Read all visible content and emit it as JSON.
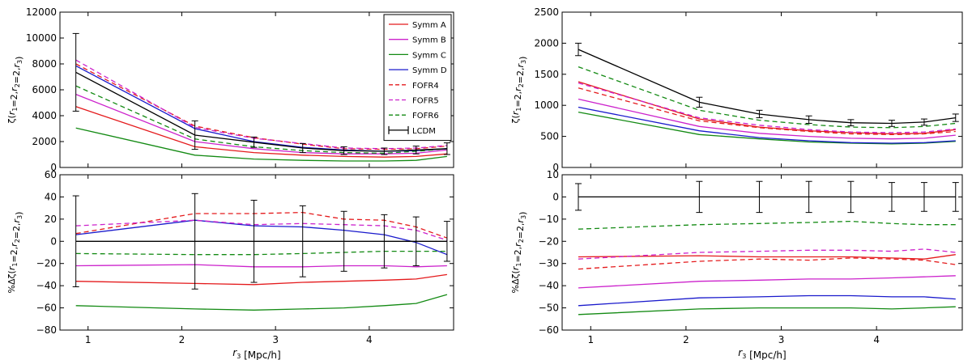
{
  "series_styles": [
    {
      "name": "Symm A",
      "color": "#e41a1c",
      "dashed": false
    },
    {
      "name": "Symm B",
      "color": "#cc22cc",
      "dashed": false
    },
    {
      "name": "Symm C",
      "color": "#138a13",
      "dashed": false
    },
    {
      "name": "Symm D",
      "color": "#1a1acc",
      "dashed": false
    },
    {
      "name": "FOFR4",
      "color": "#e41a1c",
      "dashed": true
    },
    {
      "name": "FOFR5",
      "color": "#cc22cc",
      "dashed": true
    },
    {
      "name": "FOFR6",
      "color": "#138a13",
      "dashed": true
    },
    {
      "name": "LCDM",
      "color": "#000000",
      "dashed": false
    }
  ],
  "legend": [
    "Symm A",
    "Symm B",
    "Symm C",
    "Symm D",
    "FOFR4",
    "FOFR5",
    "FOFR6",
    "LCDM"
  ],
  "chart_data": [
    {
      "type": "line",
      "panel": "left-top",
      "ylabel": "ζ(r1=2,r2=2,r3)",
      "xlabel": "",
      "xlim": [
        0.7,
        4.9
      ],
      "ylim": [
        0,
        12000
      ],
      "xticks": [
        "1",
        "2",
        "3",
        "4"
      ],
      "yticks": [
        "0",
        "2000",
        "4000",
        "6000",
        "8000",
        "10000",
        "12000"
      ],
      "legend_position": "top-right",
      "x": [
        0.87,
        2.14,
        2.77,
        3.29,
        3.73,
        4.16,
        4.5,
        4.83
      ],
      "series": [
        {
          "name": "Symm A",
          "values": [
            4700,
            1600,
            1150,
            950,
            850,
            800,
            850,
            1050
          ]
        },
        {
          "name": "Symm B",
          "values": [
            5650,
            2000,
            1450,
            1150,
            1050,
            1050,
            1100,
            1350
          ]
        },
        {
          "name": "Symm C",
          "values": [
            3050,
            950,
            650,
            550,
            500,
            500,
            550,
            850
          ]
        },
        {
          "name": "Symm D",
          "values": [
            7850,
            3000,
            2000,
            1550,
            1350,
            1250,
            1300,
            1450
          ]
        },
        {
          "name": "FOFR4",
          "values": [
            8000,
            3200,
            2300,
            1800,
            1450,
            1400,
            1450,
            1650
          ]
        },
        {
          "name": "FOFR5",
          "values": [
            8300,
            3100,
            2250,
            1850,
            1500,
            1450,
            1500,
            1700
          ]
        },
        {
          "name": "FOFR6",
          "values": [
            6300,
            2200,
            1600,
            1300,
            1150,
            1100,
            1250,
            1450
          ]
        },
        {
          "name": "LCDM",
          "values": [
            7350,
            2500,
            1950,
            1500,
            1300,
            1250,
            1350,
            1450
          ],
          "errors": [
            3000,
            1100,
            400,
            350,
            300,
            250,
            300,
            450
          ]
        }
      ]
    },
    {
      "type": "line",
      "panel": "left-bottom",
      "ylabel": "%Δζ(r1=2,r2=2,r3)",
      "xlabel": "r3 [Mpc/h]",
      "xlim": [
        0.7,
        4.9
      ],
      "ylim": [
        -80,
        60
      ],
      "xticks": [
        "1",
        "2",
        "3",
        "4"
      ],
      "yticks": [
        "−80",
        "−60",
        "−40",
        "−20",
        "0",
        "20",
        "40",
        "60"
      ],
      "x": [
        0.87,
        2.14,
        2.77,
        3.29,
        3.73,
        4.16,
        4.5,
        4.83
      ],
      "series": [
        {
          "name": "Symm A",
          "values": [
            -36,
            -38,
            -39,
            -37,
            -36,
            -35,
            -34,
            -30
          ]
        },
        {
          "name": "Symm B",
          "values": [
            -22,
            -21,
            -23,
            -23,
            -22,
            -22,
            -23,
            -22
          ]
        },
        {
          "name": "Symm C",
          "values": [
            -58,
            -61,
            -62,
            -61,
            -60,
            -58,
            -56,
            -48
          ]
        },
        {
          "name": "Symm D",
          "values": [
            6,
            19,
            14,
            13,
            10,
            6,
            -1,
            -12
          ]
        },
        {
          "name": "FOFR4",
          "values": [
            7,
            25,
            25,
            26,
            20,
            19,
            13,
            3
          ]
        },
        {
          "name": "FOFR5",
          "values": [
            14,
            19,
            15,
            16,
            15,
            14,
            10,
            1
          ]
        },
        {
          "name": "FOFR6",
          "values": [
            -11,
            -12,
            -12,
            -11,
            -10,
            -9,
            -9,
            -9
          ]
        },
        {
          "name": "LCDM",
          "values": [
            0,
            0,
            0,
            0,
            0,
            0,
            0,
            0
          ],
          "errors": [
            41,
            43,
            37,
            32,
            27,
            24,
            22,
            18
          ]
        }
      ]
    },
    {
      "type": "line",
      "panel": "right-top",
      "ylabel": "ζ(r1=2,r2=2,r3)",
      "xlabel": "",
      "xlim": [
        0.7,
        4.9
      ],
      "ylim": [
        0,
        2500
      ],
      "xticks": [
        "1",
        "2",
        "3",
        "4"
      ],
      "yticks": [
        "0",
        "500",
        "1000",
        "1500",
        "2000",
        "2500"
      ],
      "x": [
        0.87,
        2.14,
        2.77,
        3.29,
        3.73,
        4.16,
        4.5,
        4.83
      ],
      "series": [
        {
          "name": "Symm A",
          "values": [
            1380,
            780,
            650,
            590,
            560,
            540,
            550,
            610
          ]
        },
        {
          "name": "Symm B",
          "values": [
            1100,
            660,
            550,
            500,
            470,
            460,
            470,
            520
          ]
        },
        {
          "name": "Symm C",
          "values": [
            890,
            530,
            460,
            410,
            390,
            380,
            390,
            420
          ]
        },
        {
          "name": "Symm D",
          "values": [
            970,
            590,
            480,
            430,
            400,
            390,
            400,
            430
          ]
        },
        {
          "name": "FOFR4",
          "values": [
            1280,
            750,
            640,
            580,
            540,
            530,
            540,
            580
          ]
        },
        {
          "name": "FOFR5",
          "values": [
            1360,
            800,
            680,
            610,
            570,
            560,
            570,
            620
          ]
        },
        {
          "name": "FOFR6",
          "values": [
            1620,
            920,
            760,
            690,
            650,
            640,
            660,
            710
          ]
        },
        {
          "name": "LCDM",
          "values": [
            1900,
            1050,
            860,
            770,
            720,
            710,
            730,
            800
          ],
          "errors": [
            100,
            80,
            60,
            60,
            50,
            50,
            50,
            60
          ]
        }
      ]
    },
    {
      "type": "line",
      "panel": "right-bottom",
      "ylabel": "%Δζ(r1=2,r2=2,r3)",
      "xlabel": "r3 [Mpc/h]",
      "xlim": [
        0.7,
        4.9
      ],
      "ylim": [
        -60,
        10
      ],
      "xticks": [
        "1",
        "2",
        "3",
        "4"
      ],
      "yticks": [
        "−60",
        "−50",
        "−40",
        "−30",
        "−20",
        "−10",
        "0",
        "10"
      ],
      "x": [
        0.87,
        2.14,
        2.77,
        3.29,
        3.73,
        4.16,
        4.5,
        4.83
      ],
      "series": [
        {
          "name": "Symm A",
          "values": [
            -27,
            -26.5,
            -27,
            -27,
            -27,
            -27.5,
            -28,
            -26
          ]
        },
        {
          "name": "Symm B",
          "values": [
            -41,
            -38,
            -37.5,
            -37,
            -37,
            -36.5,
            -36,
            -35.5
          ]
        },
        {
          "name": "Symm C",
          "values": [
            -53,
            -50.5,
            -50,
            -50,
            -50,
            -50.5,
            -50,
            -49.5
          ]
        },
        {
          "name": "Symm D",
          "values": [
            -49,
            -45.5,
            -45,
            -44.5,
            -44.5,
            -45,
            -45,
            -46
          ]
        },
        {
          "name": "FOFR4",
          "values": [
            -32.5,
            -29,
            -28,
            -28.5,
            -27.5,
            -28,
            -28.5,
            -30.5
          ]
        },
        {
          "name": "FOFR5",
          "values": [
            -28,
            -25,
            -24.5,
            -24,
            -24,
            -24.5,
            -23.5,
            -25
          ]
        },
        {
          "name": "FOFR6",
          "values": [
            -14.5,
            -12.5,
            -12,
            -11.5,
            -11,
            -12,
            -12.5,
            -12.5
          ]
        },
        {
          "name": "LCDM",
          "values": [
            0,
            0,
            0,
            0,
            0,
            0,
            0,
            0
          ],
          "errors": [
            6,
            7,
            7,
            7,
            7,
            6.5,
            6.5,
            6.5
          ]
        }
      ]
    }
  ]
}
